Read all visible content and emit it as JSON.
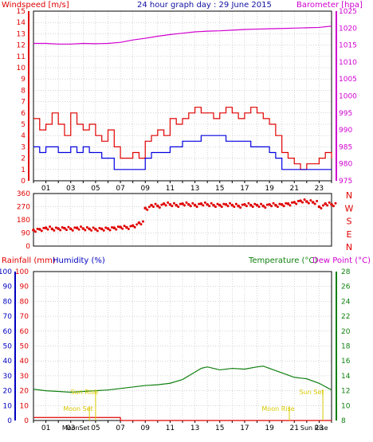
{
  "colors": {
    "wind": "#e00000",
    "gust": "#e00000",
    "avgwind": "#0000e0",
    "baro": "#d000d0",
    "title": "#1010a0",
    "dir": "#e00000",
    "rain": "#e00000",
    "humidity": "#0000c0",
    "temp": "#108010",
    "dew": "#d000d0",
    "sun": "#d8c800",
    "moon": "#d8c800",
    "grid": "#aaaaaa",
    "border": "#000000"
  },
  "header": {
    "left_label": "Windspeed [m/s]",
    "title": "24 hour graph day : 29 June 2015",
    "right_label": "Barometer [hpa]"
  },
  "panel3_header": {
    "rainfall_label": "Rainfall (mm)",
    "humidity_label": "Humidity (%)",
    "temperature_label": "Temperature (°C)",
    "dewpoint_label": "Dew Point (°C)"
  },
  "annotations": {
    "sunrise_label": "Sun Rise",
    "sunset_label": "Sun Set",
    "moonset_label": "Moon Set",
    "moonrise_label": "Moon Rise"
  },
  "bottom_axis_extra": {
    "moonset": "Moon",
    "sunset_short": "Set",
    "sunrise_short": "Sun Rise"
  },
  "chart_data": [
    {
      "type": "line",
      "panel": "wind-barometer",
      "x_ticks": [
        "01",
        "03",
        "05",
        "07",
        "09",
        "11",
        "13",
        "15",
        "17",
        "19",
        "21",
        "23"
      ],
      "x_range": [
        0,
        24
      ],
      "left_axis": {
        "label": "Windspeed [m/s]",
        "ylim": [
          0,
          15
        ],
        "ticks": [
          0,
          1,
          2,
          3,
          4,
          5,
          6,
          7,
          8,
          9,
          10,
          11,
          12,
          13,
          14,
          15
        ]
      },
      "right_axis": {
        "label": "Barometer [hpa]",
        "ylim": [
          975,
          1025
        ],
        "ticks": [
          975,
          980,
          985,
          990,
          995,
          1000,
          1005,
          1010,
          1015,
          1020,
          1025
        ]
      },
      "series": [
        {
          "axis": "right",
          "color": "baro",
          "x": [
            0,
            1,
            2,
            3,
            4,
            5,
            6,
            7,
            8,
            9,
            10,
            11,
            12,
            13,
            14,
            15,
            16,
            17,
            18,
            19,
            20,
            21,
            22,
            23,
            24
          ],
          "values": [
            1015.5,
            1015.5,
            1015.3,
            1015.3,
            1015.5,
            1015.4,
            1015.5,
            1015.8,
            1016.5,
            1017.0,
            1017.6,
            1018.1,
            1018.5,
            1018.9,
            1019.1,
            1019.2,
            1019.4,
            1019.6,
            1019.7,
            1019.8,
            1019.9,
            1020.0,
            1020.1,
            1020.2,
            1020.6
          ]
        },
        {
          "axis": "left",
          "color": "gust",
          "x": [
            0,
            0.5,
            1,
            1.5,
            2,
            2.5,
            3,
            3.5,
            4,
            4.5,
            5,
            5.5,
            6,
            6.5,
            7,
            7.5,
            8,
            8.5,
            9,
            9.5,
            10,
            10.5,
            11,
            11.5,
            12,
            12.5,
            13,
            13.5,
            14,
            14.5,
            15,
            15.5,
            16,
            16.5,
            17,
            17.5,
            18,
            18.5,
            19,
            19.5,
            20,
            20.5,
            21,
            21.5,
            22,
            22.5,
            23,
            23.5,
            24
          ],
          "values": [
            5.5,
            4.5,
            5,
            6,
            5,
            4,
            6,
            5,
            4.5,
            5,
            4,
            3.5,
            4.5,
            3,
            2,
            2,
            2.5,
            2,
            3.5,
            4,
            4.5,
            4,
            5.5,
            5,
            5.5,
            6,
            6.5,
            6,
            6,
            5.5,
            6,
            6.5,
            6,
            5.5,
            6,
            6.5,
            6,
            5.5,
            5,
            4,
            2.5,
            2,
            1.5,
            1,
            1.5,
            1.5,
            2,
            2.5,
            2
          ]
        },
        {
          "axis": "left",
          "color": "avgwind",
          "x": [
            0,
            0.5,
            1,
            1.5,
            2,
            2.5,
            3,
            3.5,
            4,
            4.5,
            5,
            5.5,
            6,
            6.5,
            7,
            7.5,
            8,
            8.5,
            9,
            9.5,
            10,
            10.5,
            11,
            11.5,
            12,
            12.5,
            13,
            13.5,
            14,
            14.5,
            15,
            15.5,
            16,
            16.5,
            17,
            17.5,
            18,
            18.5,
            19,
            19.5,
            20,
            20.5,
            21,
            21.5,
            22,
            22.5,
            23,
            23.5,
            24
          ],
          "values": [
            3,
            2.5,
            3,
            3,
            2.5,
            2.5,
            3,
            2.5,
            3,
            2.5,
            2.5,
            2,
            2,
            1,
            1,
            1,
            1,
            1,
            2,
            2.5,
            2.5,
            2.5,
            3,
            3,
            3.5,
            3.5,
            3.5,
            4,
            4,
            4,
            4,
            3.5,
            3.5,
            3.5,
            3.5,
            3,
            3,
            3,
            2.5,
            2,
            1,
            1,
            1,
            1,
            1,
            1,
            1,
            1,
            1
          ]
        }
      ]
    },
    {
      "type": "scatter",
      "panel": "wind-direction",
      "x_range": [
        0,
        24
      ],
      "ylim": [
        0,
        360
      ],
      "y_ticks": [
        0,
        90,
        180,
        270,
        360
      ],
      "right_labels": [
        "N",
        "W",
        "S",
        "E",
        "N"
      ],
      "x": [
        0,
        0.5,
        1,
        1.5,
        2,
        2.5,
        3,
        3.5,
        4,
        4.5,
        5,
        5.5,
        6,
        6.5,
        7,
        7.5,
        8,
        8.5,
        9,
        9.5,
        10,
        10.5,
        11,
        11.5,
        12,
        12.5,
        13,
        13.5,
        14,
        14.5,
        15,
        15.5,
        16,
        16.5,
        17,
        17.5,
        18,
        18.5,
        19,
        19.5,
        20,
        20.5,
        21,
        21.5,
        22,
        22.5,
        23,
        23.5,
        24
      ],
      "values": [
        110,
        115,
        125,
        118,
        120,
        122,
        118,
        125,
        120,
        118,
        115,
        118,
        120,
        125,
        130,
        128,
        140,
        160,
        260,
        280,
        275,
        290,
        285,
        280,
        290,
        285,
        280,
        290,
        285,
        280,
        280,
        285,
        280,
        275,
        285,
        280,
        280,
        275,
        285,
        280,
        285,
        290,
        300,
        310,
        305,
        300,
        270,
        290,
        285
      ]
    },
    {
      "type": "line",
      "panel": "rain-humidity-temperature",
      "x_range": [
        0,
        24
      ],
      "x_ticks": [
        "01",
        "03",
        "05",
        "07",
        "09",
        "11",
        "13",
        "15",
        "17",
        "19",
        "21",
        "23"
      ],
      "rain_axis": {
        "label": "Rainfall (mm)",
        "ylim": [
          0,
          100
        ],
        "ticks": [
          0,
          10,
          20,
          30,
          40,
          50,
          60,
          70,
          80,
          90,
          100
        ]
      },
      "humidity_axis": {
        "label": "Humidity (%)",
        "ylim": [
          0,
          100
        ],
        "ticks": [
          0,
          10,
          20,
          30,
          40,
          50,
          60,
          70,
          80,
          90,
          100
        ]
      },
      "temp_axis": {
        "label": "Temperature (°C)",
        "ylim": [
          8,
          28
        ],
        "ticks": [
          8,
          10,
          12,
          14,
          16,
          18,
          20,
          22,
          24,
          26,
          28
        ]
      },
      "series": [
        {
          "name": "Temperature (°C)",
          "axis": "temp",
          "color": "temp",
          "x": [
            0,
            1,
            2,
            3,
            4,
            5,
            6,
            7,
            8,
            9,
            10,
            11,
            12,
            13,
            13.5,
            14,
            14.5,
            15,
            16,
            17,
            18,
            18.5,
            19,
            20,
            21,
            22,
            23,
            24
          ],
          "values": [
            12.2,
            12.0,
            11.9,
            11.8,
            11.9,
            12.0,
            12.1,
            12.3,
            12.5,
            12.7,
            12.8,
            13.0,
            13.5,
            14.5,
            15.0,
            15.2,
            15.0,
            14.8,
            15.0,
            14.9,
            15.2,
            15.3,
            15.0,
            14.4,
            13.8,
            13.6,
            13.0,
            12.1
          ]
        },
        {
          "name": "Rainfall (mm)",
          "axis": "rain",
          "color": "rain",
          "x": [
            0,
            7,
            7,
            24
          ],
          "values": [
            2,
            2,
            0,
            0
          ]
        }
      ],
      "events": [
        {
          "label": "Sun Rise",
          "x": 4.1,
          "row": "sun"
        },
        {
          "label": "Sun Set",
          "x": 22.4,
          "row": "sun"
        },
        {
          "label": "Moon Set",
          "x": 3.6,
          "row": "moon"
        },
        {
          "label": "Moon Rise",
          "x": 19.7,
          "row": "moon"
        }
      ]
    }
  ]
}
